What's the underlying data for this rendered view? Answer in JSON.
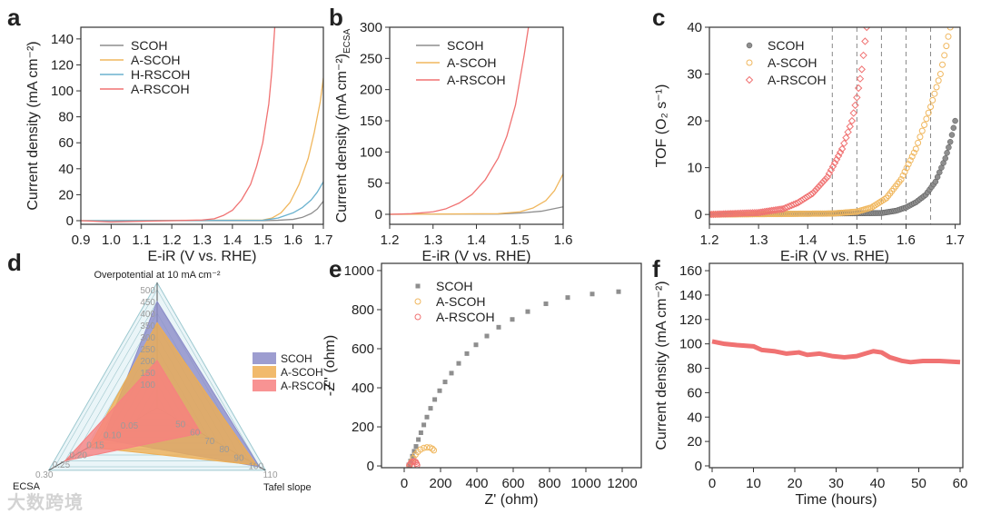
{
  "watermark": "大数跨境",
  "colors": {
    "SCOH": "#8e8e8e",
    "A-SCOH": "#f0b75e",
    "H-RSCOH": "#6bb2cf",
    "A-RSCOH": "#f07272",
    "radar_SCOH": "#8c8cc8",
    "radar_A-SCOH": "#eeae52",
    "radar_A-RSCOH": "#f78080"
  },
  "chart_data": [
    {
      "panel": "a",
      "type": "line",
      "xlabel": "E-iR (V vs. RHE)",
      "ylabel": "Current density (mA cm⁻²)",
      "xlim": [
        0.9,
        1.7
      ],
      "ylim": [
        -2.8,
        149
      ],
      "xticks": [
        0.9,
        1.0,
        1.1,
        1.2,
        1.3,
        1.4,
        1.5,
        1.6,
        1.7
      ],
      "xticklabels": [
        "0.9",
        "1.0",
        "1.1",
        "1.2",
        "1.3",
        "1.4",
        "1.5",
        "1.6",
        "1.7"
      ],
      "yticks": [
        0,
        20,
        40,
        60,
        80,
        100,
        120,
        140
      ],
      "yticklabels": [
        "0",
        "20",
        "40",
        "60",
        "80",
        "100",
        "120",
        "140"
      ],
      "legend": "top-left",
      "series": [
        {
          "name": "SCOH",
          "points": [
            [
              0.9,
              0
            ],
            [
              1.5,
              0
            ],
            [
              1.55,
              0.3
            ],
            [
              1.6,
              1
            ],
            [
              1.63,
              2.5
            ],
            [
              1.66,
              5.5
            ],
            [
              1.68,
              9
            ],
            [
              1.7,
              15
            ]
          ]
        },
        {
          "name": "A-SCOH",
          "points": [
            [
              0.9,
              0
            ],
            [
              1.5,
              0.5
            ],
            [
              1.53,
              2
            ],
            [
              1.56,
              6
            ],
            [
              1.59,
              14
            ],
            [
              1.62,
              28
            ],
            [
              1.65,
              48
            ],
            [
              1.67,
              68
            ],
            [
              1.69,
              92
            ],
            [
              1.7,
              110
            ]
          ]
        },
        {
          "name": "H-RSCOH",
          "points": [
            [
              0.9,
              0
            ],
            [
              1.5,
              0.3
            ],
            [
              1.55,
              2
            ],
            [
              1.6,
              6
            ],
            [
              1.63,
              10
            ],
            [
              1.66,
              16
            ],
            [
              1.68,
              22
            ],
            [
              1.7,
              30
            ]
          ]
        },
        {
          "name": "A-RSCOH",
          "points": [
            [
              0.9,
              0
            ],
            [
              1.0,
              -1
            ],
            [
              1.3,
              0.5
            ],
            [
              1.34,
              1.5
            ],
            [
              1.37,
              4
            ],
            [
              1.4,
              8
            ],
            [
              1.43,
              16
            ],
            [
              1.46,
              28
            ],
            [
              1.48,
              42
            ],
            [
              1.5,
              60
            ],
            [
              1.52,
              90
            ],
            [
              1.53,
              115
            ],
            [
              1.54,
              150
            ]
          ]
        }
      ]
    },
    {
      "panel": "b",
      "type": "line",
      "xlabel": "E-iR (V vs. RHE)",
      "ylabel": "Current density (mA cm⁻²)",
      "ylabel_sub": "ECSA",
      "xlim": [
        1.2,
        1.6
      ],
      "ylim": [
        -16,
        300
      ],
      "xticks": [
        1.2,
        1.3,
        1.4,
        1.5,
        1.6
      ],
      "xticklabels": [
        "1.2",
        "1.3",
        "1.4",
        "1.5",
        "1.6"
      ],
      "yticks": [
        0,
        50,
        100,
        150,
        200,
        250,
        300
      ],
      "yticklabels": [
        "0",
        "50",
        "100",
        "150",
        "200",
        "250",
        "300"
      ],
      "legend": "top-left",
      "series": [
        {
          "name": "SCOH",
          "points": [
            [
              1.2,
              0
            ],
            [
              1.45,
              0.5
            ],
            [
              1.5,
              2
            ],
            [
              1.55,
              5
            ],
            [
              1.6,
              12
            ]
          ]
        },
        {
          "name": "A-SCOH",
          "points": [
            [
              1.2,
              0
            ],
            [
              1.45,
              1
            ],
            [
              1.5,
              4
            ],
            [
              1.53,
              10
            ],
            [
              1.56,
              22
            ],
            [
              1.58,
              38
            ],
            [
              1.6,
              65
            ]
          ]
        },
        {
          "name": "A-RSCOH",
          "points": [
            [
              1.2,
              0
            ],
            [
              1.25,
              1
            ],
            [
              1.3,
              4
            ],
            [
              1.33,
              9
            ],
            [
              1.36,
              18
            ],
            [
              1.39,
              32
            ],
            [
              1.42,
              55
            ],
            [
              1.45,
              90
            ],
            [
              1.47,
              125
            ],
            [
              1.49,
              175
            ],
            [
              1.5,
              215
            ],
            [
              1.51,
              255
            ],
            [
              1.52,
              300
            ]
          ]
        }
      ]
    },
    {
      "panel": "c",
      "type": "scatter",
      "xlabel": "E-iR (V vs. RHE)",
      "ylabel": "TOF (O₂ s⁻¹)",
      "xlim": [
        1.2,
        1.71
      ],
      "ylim": [
        -2.1,
        40
      ],
      "xticks": [
        1.2,
        1.3,
        1.4,
        1.5,
        1.6,
        1.7
      ],
      "xticklabels": [
        "1.2",
        "1.3",
        "1.4",
        "1.5",
        "1.6",
        "1.7"
      ],
      "yticks": [
        0,
        10,
        20,
        30,
        40
      ],
      "yticklabels": [
        "0",
        "10",
        "20",
        "30",
        "40"
      ],
      "legend": "top-left",
      "reference_lines_x": [
        1.45,
        1.5,
        1.55,
        1.6,
        1.65
      ],
      "series": [
        {
          "name": "SCOH",
          "marker": "circle",
          "points": [
            [
              1.2,
              0
            ],
            [
              1.55,
              0.3
            ],
            [
              1.58,
              0.8
            ],
            [
              1.6,
              1.5
            ],
            [
              1.62,
              2.6
            ],
            [
              1.64,
              4.2
            ],
            [
              1.66,
              7
            ],
            [
              1.68,
              12
            ],
            [
              1.69,
              15.5
            ],
            [
              1.7,
              20
            ]
          ]
        },
        {
          "name": "A-SCOH",
          "marker": "circle-open",
          "points": [
            [
              1.2,
              0
            ],
            [
              1.45,
              0.2
            ],
            [
              1.5,
              0.6
            ],
            [
              1.53,
              1.5
            ],
            [
              1.56,
              3.5
            ],
            [
              1.59,
              7.5
            ],
            [
              1.62,
              14
            ],
            [
              1.65,
              23
            ],
            [
              1.67,
              30
            ],
            [
              1.69,
              40
            ]
          ]
        },
        {
          "name": "A-RSCOH",
          "marker": "diamond-open",
          "points": [
            [
              1.2,
              0
            ],
            [
              1.3,
              0.4
            ],
            [
              1.35,
              1.2
            ],
            [
              1.38,
              2.5
            ],
            [
              1.41,
              4.5
            ],
            [
              1.44,
              8
            ],
            [
              1.47,
              14
            ],
            [
              1.49,
              20
            ],
            [
              1.5,
              25
            ],
            [
              1.51,
              31
            ],
            [
              1.52,
              40
            ]
          ]
        }
      ]
    },
    {
      "panel": "d",
      "type": "radar",
      "axes": [
        {
          "label": "Overpotential at 10 mA cm⁻²",
          "min": 0,
          "max": 500,
          "ticks": [
            "100",
            "150",
            "200",
            "250",
            "300",
            "350",
            "400",
            "450",
            "500"
          ],
          "tickvals": [
            100,
            150,
            200,
            250,
            300,
            350,
            400,
            450,
            500
          ]
        },
        {
          "label": "Tafel slope",
          "min": 40,
          "max": 110,
          "ticks": [
            "50",
            "60",
            "70",
            "80",
            "90",
            "100",
            "110"
          ],
          "tickvals": [
            50,
            60,
            70,
            80,
            90,
            100,
            110
          ]
        },
        {
          "label": "ECSA",
          "min": 0,
          "max": 0.3,
          "ticks": [
            "0.05",
            "0.10",
            "0.15",
            "0.20",
            "0.25",
            "0.30"
          ],
          "tickvals": [
            0.05,
            0.1,
            0.15,
            0.2,
            0.25,
            0.3
          ]
        }
      ],
      "legend": "right",
      "series": [
        {
          "name": "SCOH",
          "values": [
            450,
            110,
            0.16
          ]
        },
        {
          "name": "A-SCOH",
          "values": [
            360,
            108,
            0.2
          ]
        },
        {
          "name": "A-RSCOH",
          "values": [
            200,
            70,
            0.27
          ]
        }
      ]
    },
    {
      "panel": "e",
      "type": "scatter",
      "xlabel": "Z' (ohm)",
      "ylabel": "-Z'' (ohm)",
      "xlim": [
        -125,
        1305
      ],
      "ylim": [
        -9,
        1037
      ],
      "xticks": [
        0,
        200,
        400,
        600,
        800,
        1000,
        1200
      ],
      "xticklabels": [
        "0",
        "200",
        "400",
        "600",
        "800",
        "1000",
        "1200"
      ],
      "yticks": [
        0,
        200,
        400,
        600,
        800,
        1000
      ],
      "yticklabels": [
        "0",
        "200",
        "400",
        "600",
        "800",
        "1000"
      ],
      "legend": "top-left",
      "series": [
        {
          "name": "SCOH",
          "marker": "square",
          "points": [
            [
              25,
              5
            ],
            [
              35,
              25
            ],
            [
              45,
              50
            ],
            [
              55,
              75
            ],
            [
              65,
              100
            ],
            [
              78,
              135
            ],
            [
              92,
              170
            ],
            [
              108,
              210
            ],
            [
              125,
              250
            ],
            [
              145,
              295
            ],
            [
              168,
              340
            ],
            [
              195,
              385
            ],
            [
              225,
              430
            ],
            [
              260,
              475
            ],
            [
              300,
              525
            ],
            [
              345,
              575
            ],
            [
              395,
              620
            ],
            [
              455,
              665
            ],
            [
              520,
              710
            ],
            [
              595,
              750
            ],
            [
              680,
              790
            ],
            [
              780,
              830
            ],
            [
              900,
              862
            ],
            [
              1035,
              880
            ],
            [
              1180,
              892
            ]
          ]
        },
        {
          "name": "A-SCOH",
          "marker": "circle-open",
          "points": [
            [
              30,
              2
            ],
            [
              40,
              20
            ],
            [
              50,
              40
            ],
            [
              62,
              58
            ],
            [
              75,
              72
            ],
            [
              90,
              84
            ],
            [
              108,
              92
            ],
            [
              125,
              95
            ],
            [
              142,
              94
            ],
            [
              155,
              88
            ],
            [
              163,
              80
            ]
          ]
        },
        {
          "name": "A-RSCOH",
          "marker": "circle-open",
          "points": [
            [
              28,
              2
            ],
            [
              33,
              10
            ],
            [
              40,
              18
            ],
            [
              48,
              23
            ],
            [
              56,
              24
            ],
            [
              63,
              20
            ],
            [
              68,
              12
            ],
            [
              71,
              4
            ]
          ]
        }
      ]
    },
    {
      "panel": "f",
      "type": "line",
      "xlabel": "Time (hours)",
      "ylabel": "Current density (mA cm⁻²)",
      "xlim": [
        -0.66,
        60.66
      ],
      "ylim": [
        -1.5,
        166
      ],
      "xticks": [
        0,
        10,
        20,
        30,
        40,
        50,
        60
      ],
      "xticklabels": [
        "0",
        "10",
        "20",
        "30",
        "40",
        "50",
        "60"
      ],
      "yticks": [
        0,
        20,
        40,
        60,
        80,
        100,
        120,
        140,
        160
      ],
      "yticklabels": [
        "0",
        "20",
        "40",
        "60",
        "80",
        "100",
        "120",
        "140",
        "160"
      ],
      "series": [
        {
          "name": "A-RSCOH",
          "points": [
            [
              0,
              102
            ],
            [
              3,
              100
            ],
            [
              6,
              99
            ],
            [
              10,
              98
            ],
            [
              12,
              95
            ],
            [
              15,
              94
            ],
            [
              18,
              92
            ],
            [
              21,
              93
            ],
            [
              23,
              91
            ],
            [
              26,
              92
            ],
            [
              29,
              90
            ],
            [
              32,
              89
            ],
            [
              35,
              90
            ],
            [
              37,
              92
            ],
            [
              39,
              94
            ],
            [
              41,
              93
            ],
            [
              43,
              89
            ],
            [
              46,
              86
            ],
            [
              48,
              85
            ],
            [
              51,
              86
            ],
            [
              55,
              86
            ],
            [
              60,
              85
            ]
          ]
        }
      ]
    }
  ]
}
